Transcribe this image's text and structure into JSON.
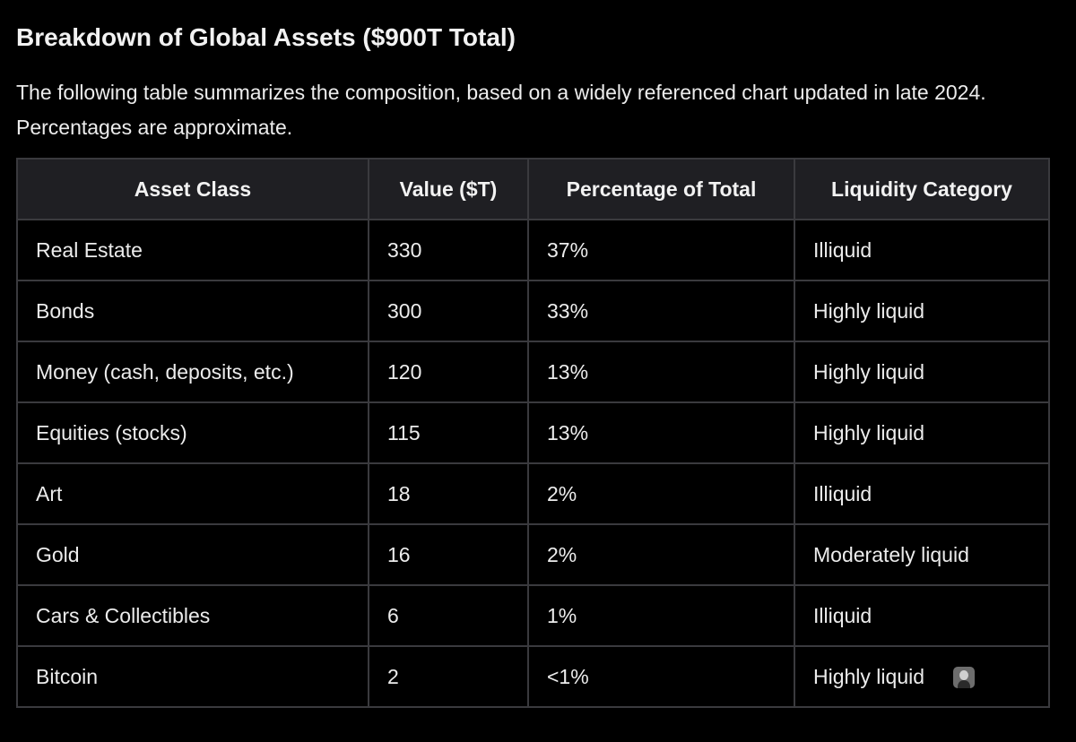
{
  "title": "Breakdown of Global Assets ($900T Total)",
  "intro": "The following table summarizes the composition, based on a widely referenced chart updated in late 2024. Percentages are approximate.",
  "table": {
    "headers": [
      "Asset Class",
      "Value ($T)",
      "Percentage of Total",
      "Liquidity Category"
    ],
    "rows": [
      [
        "Real Estate",
        "330",
        "37%",
        "Illiquid"
      ],
      [
        "Bonds",
        "300",
        "33%",
        "Highly liquid"
      ],
      [
        "Money (cash, deposits, etc.)",
        "120",
        "13%",
        "Highly liquid"
      ],
      [
        "Equities (stocks)",
        "115",
        "13%",
        "Highly liquid"
      ],
      [
        "Art",
        "18",
        "2%",
        "Illiquid"
      ],
      [
        "Gold",
        "16",
        "2%",
        "Moderately liquid"
      ],
      [
        "Cars & Collectibles",
        "6",
        "1%",
        "Illiquid"
      ],
      [
        "Bitcoin",
        "2",
        "<1%",
        "Highly liquid"
      ]
    ]
  },
  "icons": {
    "avatar": "avatar-icon"
  },
  "colors": {
    "background": "#000000",
    "header_background": "#1f1f23",
    "border": "#3a3a3e",
    "text": "#ececec"
  }
}
